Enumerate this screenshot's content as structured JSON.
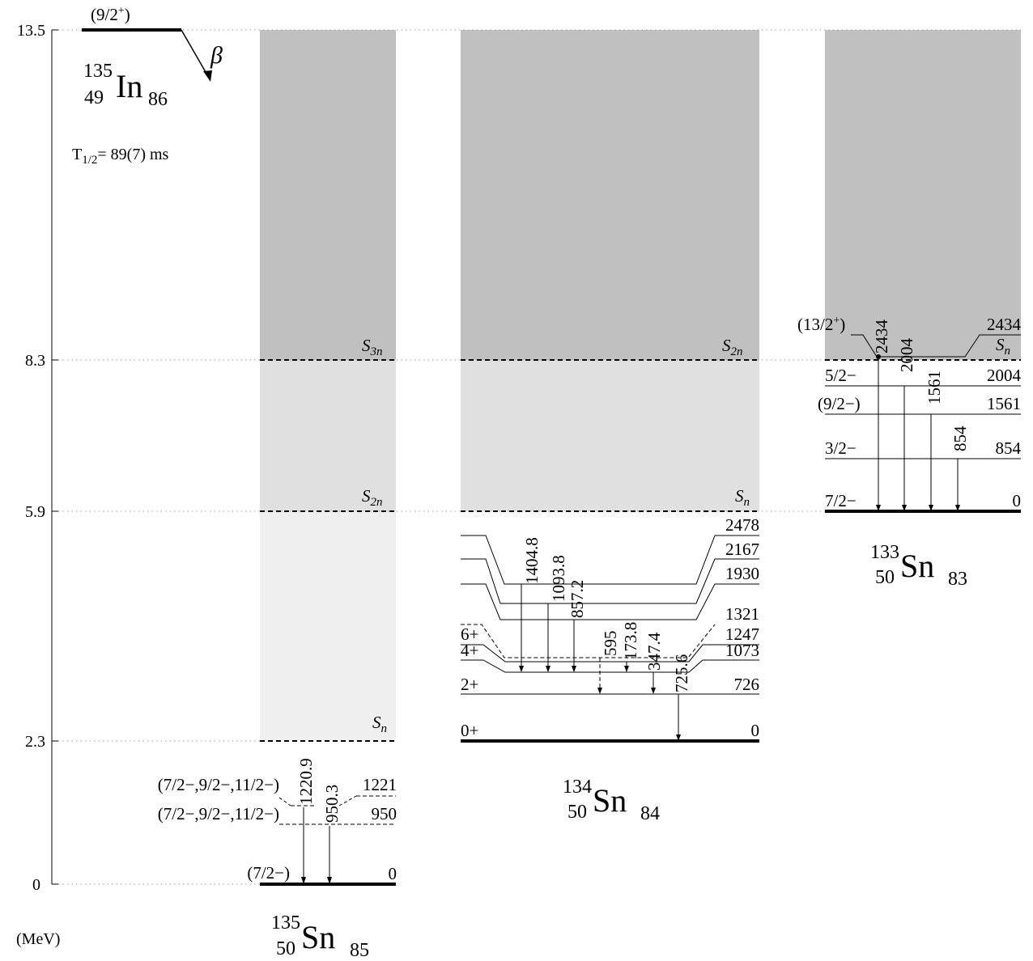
{
  "axis": {
    "unit": "(MeV)",
    "ticks": [
      {
        "label": "13.5",
        "value": 13.5
      },
      {
        "label": "8.3",
        "value": 8.3
      },
      {
        "label": "5.9",
        "value": 5.9
      },
      {
        "label": "2.3",
        "value": 2.3
      },
      {
        "label": "0",
        "value": 0
      }
    ]
  },
  "parent": {
    "spin": "(9/2",
    "spin_sup": "+",
    "spin_close": ")",
    "decay": "β",
    "A": "135",
    "Z": "49",
    "symbol": "In",
    "N": "86",
    "halflife_prefix": "T",
    "halflife_sub": "1/2",
    "halflife_value": "= 89(7) ms"
  },
  "nuclei": {
    "sn135": {
      "A": "135",
      "Z": "50",
      "symbol": "Sn",
      "N": "85",
      "thresholds": {
        "s3n": {
          "main": "S",
          "sub": "3n"
        },
        "s2n": {
          "main": "S",
          "sub": "2n"
        },
        "sn": {
          "main": "S",
          "sub": "n"
        }
      },
      "levels": [
        {
          "energy": "0",
          "spin": "(7/2−)"
        },
        {
          "energy": "950",
          "spin": "(7/2−,9/2−,11/2−)"
        },
        {
          "energy": "1221",
          "spin": "(7/2−,9/2−,11/2−)"
        }
      ],
      "gammas": [
        "1220.9",
        "950.3"
      ]
    },
    "sn134": {
      "A": "134",
      "Z": "50",
      "symbol": "Sn",
      "N": "84",
      "thresholds": {
        "s2n": {
          "main": "S",
          "sub": "2n"
        },
        "sn": {
          "main": "S",
          "sub": "n"
        }
      },
      "levels": [
        {
          "energy": "2478"
        },
        {
          "energy": "2167"
        },
        {
          "energy": "1930"
        },
        {
          "energy": "1321"
        },
        {
          "energy": "1247",
          "spin": "6+"
        },
        {
          "energy": "1073",
          "spin": "4+"
        },
        {
          "energy": "726",
          "spin": "2+"
        },
        {
          "energy": "0",
          "spin": "0+"
        }
      ],
      "gammas": [
        "1404.8",
        "1093.8",
        "857.2",
        "595",
        "173.8",
        "347.4",
        "725.6"
      ]
    },
    "sn133": {
      "A": "133",
      "Z": "50",
      "symbol": "Sn",
      "N": "83",
      "thresholds": {
        "sn": {
          "main": "S",
          "sub": "n"
        }
      },
      "levels": [
        {
          "energy": "2434",
          "spin": "(13/2",
          "spin_sup": "+",
          "spin_close": ")"
        },
        {
          "energy": "2004",
          "spin": "5/2−"
        },
        {
          "energy": "1561",
          "spin": "(9/2−)"
        },
        {
          "energy": "854",
          "spin": "3/2−"
        },
        {
          "energy": "0",
          "spin": "7/2−"
        }
      ],
      "gammas": [
        "2434",
        "2004",
        "1561",
        "854"
      ]
    }
  },
  "colors": {
    "shade_dark": "#c0c0c0",
    "shade_mid": "#e0e0e0",
    "shade_light": "#efefef"
  }
}
